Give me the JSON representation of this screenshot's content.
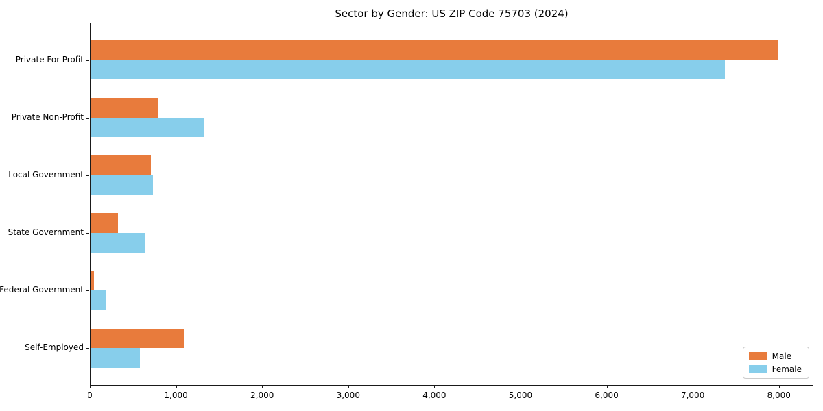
{
  "chart_data": {
    "type": "bar",
    "orientation": "horizontal",
    "title": "Sector by Gender: US ZIP Code 75703 (2024)",
    "categories": [
      "Private For-Profit",
      "Private Non-Profit",
      "Local Government",
      "State Government",
      "Federal Government",
      "Self-Employed"
    ],
    "series": [
      {
        "name": "Male",
        "color": "#E87B3C",
        "values": [
          7990,
          790,
          710,
          330,
          45,
          1090
        ]
      },
      {
        "name": "Female",
        "color": "#87CEEB",
        "values": [
          7370,
          1330,
          730,
          640,
          190,
          580
        ]
      }
    ],
    "xlabel": "",
    "ylabel": "",
    "xlim": [
      0,
      8400
    ],
    "x_ticks": [
      0,
      1000,
      2000,
      3000,
      4000,
      5000,
      6000,
      7000,
      8000
    ],
    "x_tick_labels": [
      "0",
      "1,000",
      "2,000",
      "3,000",
      "4,000",
      "5,000",
      "6,000",
      "7,000",
      "8,000"
    ],
    "grid": false,
    "legend_position": "lower right"
  }
}
